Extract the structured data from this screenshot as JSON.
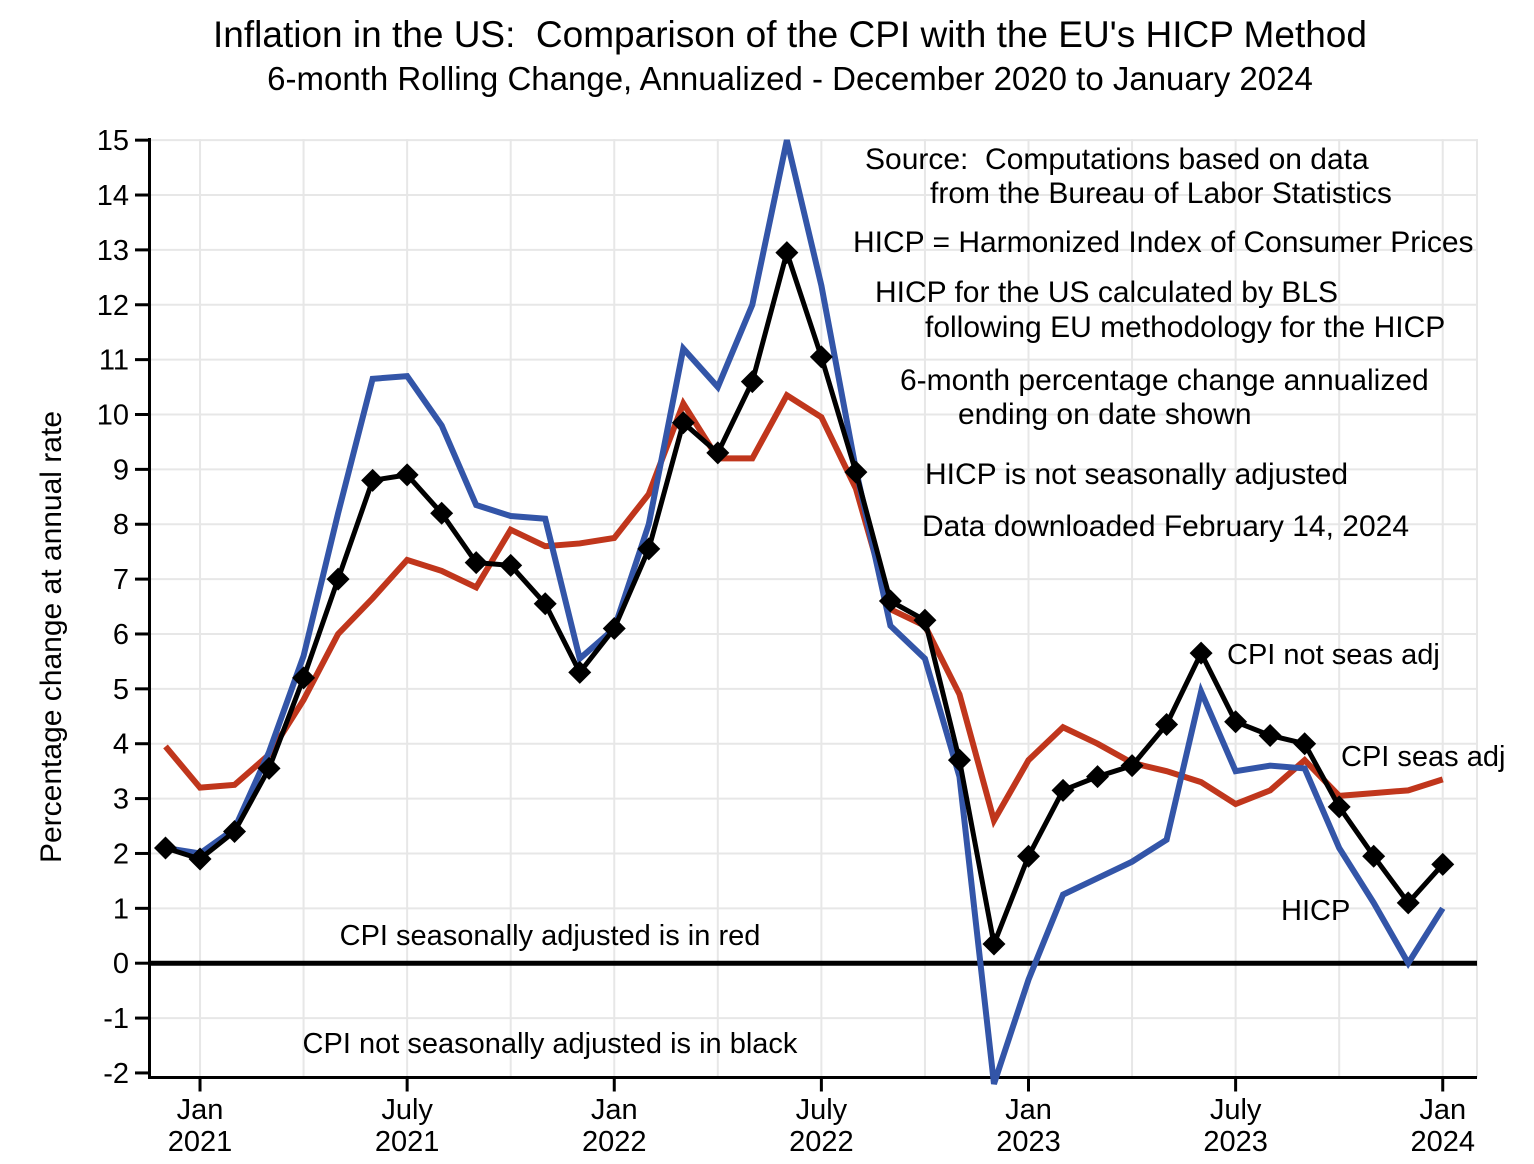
{
  "page": {
    "title_line1": "Inflation in the US:  Comparison of the CPI with the EU's HICP Method",
    "title_line2": "6-month Rolling Change, Annualized - December 2020 to January 2024"
  },
  "y_axis": {
    "title": "Percentage change at annual rate"
  },
  "annotations": {
    "source_1": "Source:  Computations based on data",
    "source_2": "from the Bureau of Labor Statistics",
    "hicp_def": "HICP = Harmonized Index of Consumer Prices",
    "hicp_calc_1": "HICP for the US calculated by BLS",
    "hicp_calc_2": "following EU methodology for the HICP",
    "sixmo_1": "6-month percentage change annualized",
    "sixmo_2": "ending on date shown",
    "hicp_nsa": "HICP is not seasonally adjusted",
    "downloaded": "Data downloaded February 14, 2024",
    "legend_red": "CPI seasonally adjusted is in red",
    "legend_black": "CPI not seasonally adjusted is in black"
  },
  "series_labels": {
    "cpi_nsa": "CPI not seas adj",
    "cpi_sa": "CPI seas adj",
    "hicp": "HICP"
  },
  "chart_data": {
    "type": "line",
    "title": "Inflation in the US: Comparison of the CPI with the EU's HICP Method",
    "xlabel": "",
    "ylabel": "Percentage change at annual rate",
    "ylim": [
      -2,
      15
    ],
    "grid": "both, light gray; horizontal every 1 unit, vertical every 3 months; thick black zero line",
    "legend_position": "in-plot text labels",
    "x": [
      "Dec 2020",
      "Jan 2021",
      "Feb 2021",
      "Mar 2021",
      "Apr 2021",
      "May 2021",
      "Jun 2021",
      "Jul 2021",
      "Aug 2021",
      "Sep 2021",
      "Oct 2021",
      "Nov 2021",
      "Dec 2021",
      "Jan 2022",
      "Feb 2022",
      "Mar 2022",
      "Apr 2022",
      "May 2022",
      "Jun 2022",
      "Jul 2022",
      "Aug 2022",
      "Sep 2022",
      "Oct 2022",
      "Nov 2022",
      "Dec 2022",
      "Jan 2023",
      "Feb 2023",
      "Mar 2023",
      "Apr 2023",
      "May 2023",
      "Jun 2023",
      "Jul 2023",
      "Aug 2023",
      "Sep 2023",
      "Oct 2023",
      "Nov 2023",
      "Dec 2023",
      "Jan 2024"
    ],
    "yticks": [
      -2,
      -1,
      0,
      1,
      2,
      3,
      4,
      5,
      6,
      7,
      8,
      9,
      10,
      11,
      12,
      13,
      14,
      15
    ],
    "xticks": [
      {
        "i": 1,
        "line1": "Jan",
        "line2": "2021"
      },
      {
        "i": 7,
        "line1": "July",
        "line2": "2021"
      },
      {
        "i": 13,
        "line1": "Jan",
        "line2": "2022"
      },
      {
        "i": 19,
        "line1": "July",
        "line2": "2022"
      },
      {
        "i": 25,
        "line1": "Jan",
        "line2": "2023"
      },
      {
        "i": 31,
        "line1": "July",
        "line2": "2023"
      },
      {
        "i": 37,
        "line1": "Jan",
        "line2": "2024"
      }
    ],
    "series": [
      {
        "name": "CPI seasonally adjusted",
        "color": "#c0361c",
        "marker": "none",
        "values": [
          3.95,
          3.2,
          3.25,
          3.8,
          4.8,
          6.0,
          6.65,
          7.35,
          7.15,
          6.85,
          7.9,
          7.6,
          7.65,
          7.75,
          8.55,
          10.2,
          9.2,
          9.2,
          10.35,
          9.95,
          8.65,
          6.45,
          6.15,
          4.9,
          2.6,
          3.7,
          4.3,
          4.0,
          3.65,
          3.5,
          3.3,
          2.9,
          3.15,
          3.7,
          3.05,
          3.1,
          3.15,
          3.35
        ]
      },
      {
        "name": "HICP",
        "color": "#3355a8",
        "marker": "none",
        "values": [
          2.1,
          2.0,
          2.45,
          3.85,
          5.6,
          8.2,
          10.65,
          10.7,
          9.8,
          8.35,
          8.15,
          8.1,
          5.55,
          6.1,
          8.0,
          11.2,
          10.5,
          12.0,
          15.0,
          12.35,
          9.0,
          6.15,
          5.55,
          3.4,
          -2.2,
          -0.3,
          1.25,
          1.55,
          1.85,
          2.25,
          4.95,
          3.5,
          3.6,
          3.55,
          2.1,
          1.1,
          0.0,
          1.0
        ]
      },
      {
        "name": "CPI not seasonally adjusted",
        "color": "#000000",
        "marker": "diamond",
        "values": [
          2.1,
          1.9,
          2.4,
          3.55,
          5.2,
          7.0,
          8.8,
          8.9,
          8.2,
          7.3,
          7.25,
          6.55,
          5.3,
          6.1,
          7.55,
          9.85,
          9.3,
          10.6,
          12.95,
          11.05,
          8.95,
          6.6,
          6.25,
          3.7,
          0.35,
          1.95,
          3.15,
          3.4,
          3.6,
          4.35,
          5.65,
          4.4,
          4.15,
          4.0,
          2.85,
          1.95,
          1.1,
          1.8
        ]
      }
    ]
  }
}
